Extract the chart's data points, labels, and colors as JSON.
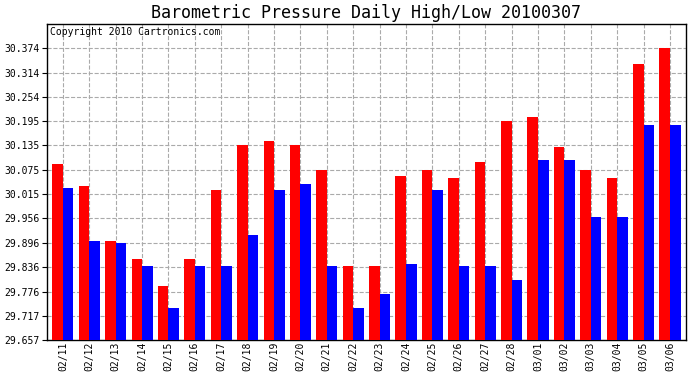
{
  "title": "Barometric Pressure Daily High/Low 20100307",
  "copyright": "Copyright 2010 Cartronics.com",
  "dates": [
    "02/11",
    "02/12",
    "02/13",
    "02/14",
    "02/15",
    "02/16",
    "02/17",
    "02/18",
    "02/19",
    "02/20",
    "02/21",
    "02/22",
    "02/23",
    "02/24",
    "02/25",
    "02/26",
    "02/27",
    "02/28",
    "03/01",
    "03/02",
    "03/03",
    "03/04",
    "03/05",
    "03/06"
  ],
  "highs": [
    30.09,
    30.035,
    29.9,
    29.855,
    29.79,
    29.855,
    30.025,
    30.135,
    30.145,
    30.135,
    30.075,
    29.84,
    29.84,
    30.06,
    30.075,
    30.055,
    30.095,
    30.195,
    30.205,
    30.13,
    30.075,
    30.055,
    30.335,
    30.374
  ],
  "lows": [
    30.03,
    29.9,
    29.895,
    29.84,
    29.735,
    29.84,
    29.84,
    29.915,
    30.025,
    30.04,
    29.84,
    29.735,
    29.77,
    29.845,
    30.025,
    29.84,
    29.84,
    29.805,
    30.1,
    30.1,
    29.96,
    29.96,
    30.185,
    30.185
  ],
  "high_color": "#ff0000",
  "low_color": "#0000ff",
  "bg_color": "#ffffff",
  "plot_bg_color": "#ffffff",
  "grid_color": "#aaaaaa",
  "yticks": [
    29.657,
    29.717,
    29.776,
    29.836,
    29.896,
    29.956,
    30.015,
    30.075,
    30.135,
    30.195,
    30.254,
    30.314,
    30.374
  ],
  "ymin": 29.657,
  "ymax": 30.434,
  "title_fontsize": 12,
  "copyright_fontsize": 7,
  "tick_fontsize": 7
}
